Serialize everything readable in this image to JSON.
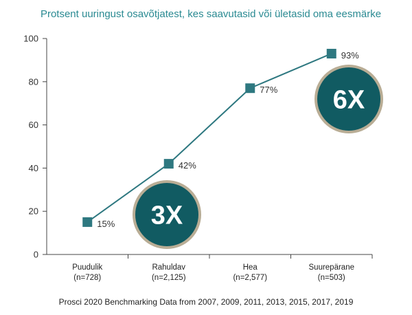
{
  "chart_data": {
    "type": "line",
    "title": "Protsent uuringust osavõtjatest, kes saavutasid või ületasid oma eesmärke",
    "categories": [
      "Puudulik",
      "Rahuldav",
      "Hea",
      "Suurepärane"
    ],
    "category_counts": [
      "(n=728)",
      "(n=2,125)",
      "(n=2,577)",
      "(n=503)"
    ],
    "values": [
      15,
      42,
      77,
      93
    ],
    "data_labels": [
      "15%",
      "42%",
      "77%",
      "93%"
    ],
    "ylim": [
      0,
      100
    ],
    "yticks": [
      0,
      20,
      40,
      60,
      80,
      100
    ],
    "grid": false,
    "line_color": "#2e7880",
    "marker_color": "#2e7880",
    "marker": "square"
  },
  "badges": [
    {
      "text": "3X",
      "fill": "#115b62",
      "ring": "#b9ad95"
    },
    {
      "text": "6X",
      "fill": "#115b62",
      "ring": "#b9ad95"
    }
  ],
  "footer": "Prosci 2020 Benchmarking Data from 2007, 2009, 2011, 2013, 2015, 2017, 2019"
}
